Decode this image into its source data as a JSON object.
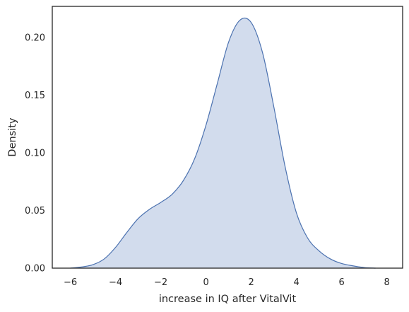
{
  "chart_data": {
    "type": "area",
    "title": "",
    "xlabel": "increase in IQ after VitalVit",
    "ylabel": "Density",
    "xlim": [
      -6.8,
      8.7
    ],
    "ylim": [
      0.0,
      0.227
    ],
    "x_ticks": [
      -6,
      -4,
      -2,
      0,
      2,
      4,
      6,
      8
    ],
    "x_tick_labels": [
      "−6",
      "−4",
      "−2",
      "0",
      "2",
      "4",
      "6",
      "8"
    ],
    "y_ticks": [
      0.0,
      0.05,
      0.1,
      0.15,
      0.2
    ],
    "y_tick_labels": [
      "0.00",
      "0.05",
      "0.10",
      "0.15",
      "0.20"
    ],
    "grid": false,
    "series": [
      {
        "x": [
          -6.0,
          -5.5,
          -5.0,
          -4.5,
          -4.0,
          -3.5,
          -3.0,
          -2.5,
          -2.0,
          -1.5,
          -1.0,
          -0.5,
          0.0,
          0.5,
          1.0,
          1.5,
          2.0,
          2.5,
          3.0,
          3.5,
          4.0,
          4.5,
          5.0,
          5.5,
          6.0,
          6.5,
          7.0,
          7.5
        ],
        "y": [
          0.0,
          0.001,
          0.003,
          0.008,
          0.018,
          0.031,
          0.043,
          0.051,
          0.057,
          0.064,
          0.076,
          0.095,
          0.124,
          0.16,
          0.196,
          0.215,
          0.213,
          0.187,
          0.14,
          0.088,
          0.048,
          0.026,
          0.015,
          0.008,
          0.004,
          0.002,
          0.0005,
          0.0
        ]
      }
    ],
    "colors": {
      "line": "#4c72b0",
      "fill": "#d2dced",
      "axes": "#262626"
    }
  }
}
